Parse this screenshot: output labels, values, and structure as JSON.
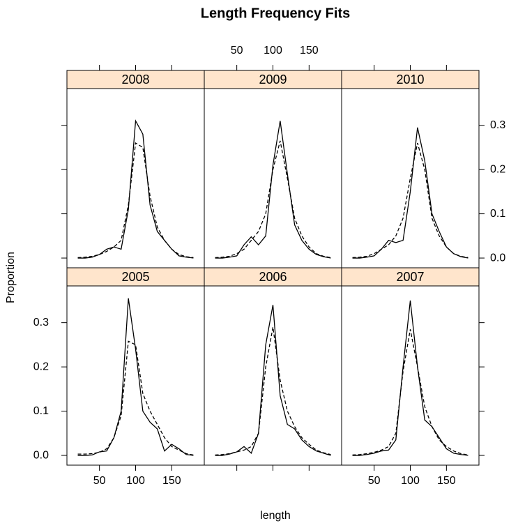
{
  "chart_data": {
    "type": "line",
    "title": "Length Frequency Fits",
    "xlabel": "length",
    "ylabel": "Proportion",
    "x": [
      20,
      30,
      40,
      50,
      60,
      70,
      80,
      90,
      100,
      110,
      120,
      130,
      140,
      150,
      160,
      170,
      180
    ],
    "xlim": [
      5,
      195
    ],
    "ylim": [
      -0.022,
      0.383
    ],
    "xticks": [
      50,
      100,
      150
    ],
    "yticks": [
      {
        "value": 0,
        "label": "0.0"
      },
      0.1,
      0.2,
      0.3
    ],
    "strip_color": "#ffe5cc",
    "line_color": "#000000",
    "panels": [
      {
        "name": "2005",
        "series": [
          {
            "linestyle": "solid",
            "values": [
              0,
              0,
              0.001,
              0.008,
              0.01,
              0.04,
              0.1,
              0.355,
              0.24,
              0.1,
              0.075,
              0.06,
              0.01,
              0.025,
              0.015,
              0.002,
              0
            ]
          },
          {
            "linestyle": "dashed",
            "values": [
              0.003,
              0.003,
              0.004,
              0.007,
              0.015,
              0.04,
              0.09,
              0.258,
              0.25,
              0.14,
              0.1,
              0.07,
              0.04,
              0.02,
              0.012,
              0.004,
              0.001
            ]
          }
        ]
      },
      {
        "name": "2006",
        "series": [
          {
            "linestyle": "solid",
            "values": [
              0,
              0,
              0.003,
              0.008,
              0.02,
              0.005,
              0.05,
              0.25,
              0.34,
              0.135,
              0.07,
              0.06,
              0.035,
              0.02,
              0.01,
              0.005,
              0
            ]
          },
          {
            "linestyle": "dashed",
            "values": [
              0.001,
              0.002,
              0.004,
              0.008,
              0.012,
              0.02,
              0.05,
              0.2,
              0.29,
              0.17,
              0.1,
              0.065,
              0.04,
              0.025,
              0.012,
              0.006,
              0.002
            ]
          }
        ]
      },
      {
        "name": "2007",
        "series": [
          {
            "linestyle": "solid",
            "values": [
              0,
              0,
              0.002,
              0.005,
              0.01,
              0.012,
              0.035,
              0.2,
              0.35,
              0.2,
              0.08,
              0.065,
              0.04,
              0.015,
              0.005,
              0.002,
              0
            ]
          },
          {
            "linestyle": "dashed",
            "values": [
              0.001,
              0.002,
              0.004,
              0.007,
              0.012,
              0.02,
              0.05,
              0.19,
              0.285,
              0.2,
              0.11,
              0.065,
              0.035,
              0.02,
              0.01,
              0.004,
              0.001
            ]
          }
        ]
      },
      {
        "name": "2008",
        "series": [
          {
            "linestyle": "solid",
            "values": [
              0,
              0,
              0.002,
              0.008,
              0.02,
              0.025,
              0.02,
              0.11,
              0.31,
              0.28,
              0.12,
              0.06,
              0.04,
              0.02,
              0.005,
              0.002,
              0
            ]
          },
          {
            "linestyle": "dashed",
            "values": [
              0.001,
              0.002,
              0.004,
              0.008,
              0.015,
              0.025,
              0.04,
              0.12,
              0.26,
              0.25,
              0.14,
              0.07,
              0.04,
              0.02,
              0.008,
              0.003,
              0.001
            ]
          }
        ]
      },
      {
        "name": "2009",
        "series": [
          {
            "linestyle": "solid",
            "values": [
              0,
              0,
              0.002,
              0.005,
              0.03,
              0.048,
              0.03,
              0.05,
              0.21,
              0.31,
              0.19,
              0.075,
              0.04,
              0.02,
              0.008,
              0.003,
              0
            ]
          },
          {
            "linestyle": "dashed",
            "values": [
              0.001,
              0.002,
              0.004,
              0.01,
              0.02,
              0.04,
              0.06,
              0.1,
              0.2,
              0.265,
              0.18,
              0.09,
              0.05,
              0.025,
              0.01,
              0.004,
              0.001
            ]
          }
        ]
      },
      {
        "name": "2010",
        "series": [
          {
            "linestyle": "solid",
            "values": [
              0,
              0,
              0.002,
              0.005,
              0.02,
              0.04,
              0.035,
              0.04,
              0.15,
              0.295,
              0.22,
              0.1,
              0.06,
              0.025,
              0.01,
              0.003,
              0
            ]
          },
          {
            "linestyle": "dashed",
            "values": [
              0.001,
              0.002,
              0.004,
              0.01,
              0.02,
              0.03,
              0.05,
              0.09,
              0.18,
              0.26,
              0.2,
              0.09,
              0.05,
              0.025,
              0.01,
              0.004,
              0.001
            ]
          }
        ]
      }
    ]
  }
}
